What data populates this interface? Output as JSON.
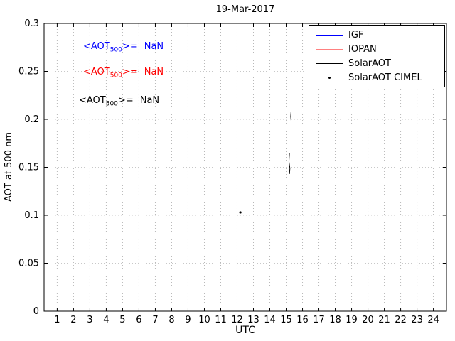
{
  "chart_data": {
    "type": "line",
    "title": "19-Mar-2017",
    "xlabel": "UTC",
    "ylabel": "AOT at 500 nm",
    "axes": {
      "xmin": 0.2,
      "xmax": 24.8,
      "ymin": 0,
      "ymax": 0.3,
      "xticks": [
        1,
        2,
        3,
        4,
        5,
        6,
        7,
        8,
        9,
        10,
        11,
        12,
        13,
        14,
        15,
        16,
        17,
        18,
        19,
        20,
        21,
        22,
        23,
        24
      ],
      "xtick_labels": [
        "1",
        "2",
        "3",
        "4",
        "5",
        "6",
        "7",
        "8",
        "9",
        "10",
        "11",
        "12",
        "13",
        "14",
        "15",
        "16",
        "17",
        "18",
        "19",
        "20",
        "21",
        "22",
        "23",
        "24"
      ],
      "yticks": [
        0,
        0.05,
        0.1,
        0.15,
        0.2,
        0.25,
        0.3
      ],
      "ytick_labels": [
        "0",
        "0.05",
        "0.1",
        "0.15",
        "0.2",
        "0.25",
        "0.3"
      ],
      "grid": true
    },
    "series": [
      {
        "name": "IGF",
        "color": "#0000ff",
        "style": "line",
        "segments": [],
        "points": []
      },
      {
        "name": "IOPAN",
        "color": "#ff8080",
        "style": "line",
        "segments": [],
        "points": []
      },
      {
        "name": "SolarAOT",
        "color": "#000000",
        "style": "line",
        "segments": [
          [
            [
              15.2,
              0.165
            ],
            [
              15.17,
              0.156
            ],
            [
              15.23,
              0.149
            ],
            [
              15.2,
              0.143
            ]
          ],
          [
            [
              15.3,
              0.208
            ],
            [
              15.28,
              0.203
            ],
            [
              15.3,
              0.199
            ]
          ]
        ],
        "points": []
      },
      {
        "name": "SolarAOT CIMEL",
        "color": "#000000",
        "style": "scatter",
        "segments": [],
        "points": [
          [
            12.2,
            0.103
          ]
        ]
      }
    ],
    "legend": {
      "position": "top-right",
      "entries": [
        {
          "label": "IGF",
          "color": "#0000ff",
          "marker": "line"
        },
        {
          "label": "IOPAN",
          "color": "#ff8080",
          "marker": "line"
        },
        {
          "label": "SolarAOT",
          "color": "#000000",
          "marker": "line"
        },
        {
          "label": "SolarAOT CIMEL",
          "color": "#000000",
          "marker": "dot"
        }
      ]
    },
    "annotations": [
      {
        "pre": "<AOT",
        "sub": "500",
        "mid": ">=",
        "value": "NaN",
        "color": "#0000ff"
      },
      {
        "pre": "<AOT",
        "sub": "500",
        "mid": ">=",
        "value": "NaN",
        "color": "#ff0000"
      },
      {
        "pre": "<AOT",
        "sub": "500",
        "mid": ">=",
        "value": "NaN",
        "color": "#000000"
      }
    ]
  }
}
